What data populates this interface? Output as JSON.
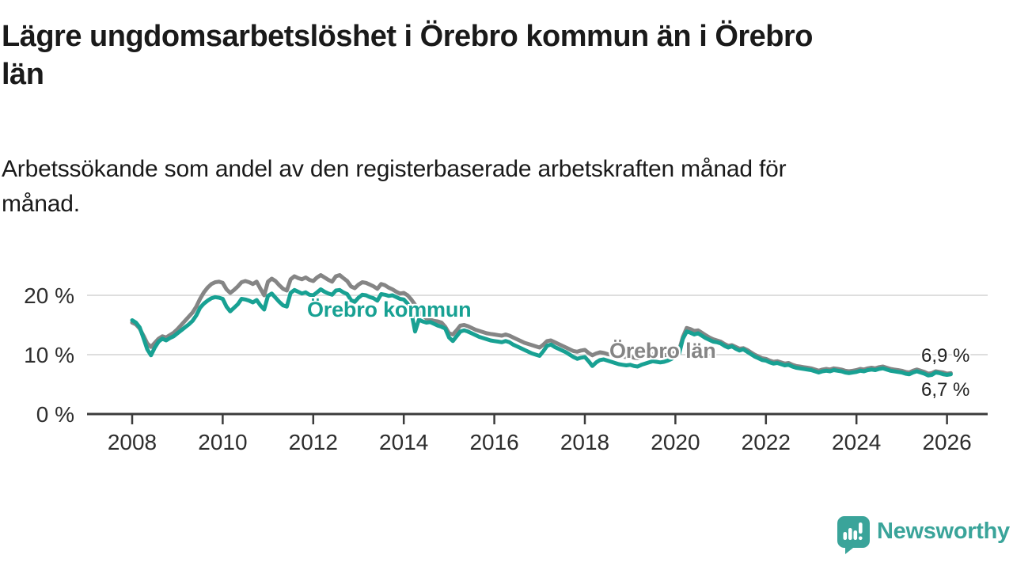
{
  "header": {
    "title": "Lägre ungdomsarbetslöshet i Örebro kommun än i Örebro\nlän",
    "subtitle": "Arbetssökande som andel av den registerbaserade arbetskraften månad för\nmånad."
  },
  "chart_data": {
    "type": "line",
    "unit": "%",
    "frequency": "monthly",
    "x_start_year": 2008,
    "points_per_year": 12,
    "x_ticks": [
      2008,
      2010,
      2012,
      2014,
      2016,
      2018,
      2020,
      2022,
      2024,
      2026
    ],
    "y_ticks": [
      {
        "value": 0,
        "label": "0 %"
      },
      {
        "value": 10,
        "label": "10 %"
      },
      {
        "value": 20,
        "label": "20 %"
      }
    ],
    "ylim": [
      0,
      25
    ],
    "grid": true,
    "colors": {
      "grid": "#dedede",
      "axis": "#3b3b3b",
      "tick_label": "#2e2e2e"
    },
    "series": [
      {
        "name": "Örebro län",
        "color": "#858585",
        "end_label": "6,9 %",
        "values": [
          15.4,
          15.1,
          14.4,
          13.2,
          11.9,
          11.3,
          12.0,
          12.7,
          13.1,
          12.9,
          13.3,
          13.7,
          14.3,
          15.0,
          15.7,
          16.4,
          17.1,
          18.1,
          19.4,
          20.5,
          21.3,
          21.9,
          22.2,
          22.3,
          22.1,
          21.0,
          20.4,
          20.9,
          21.5,
          22.2,
          22.4,
          22.2,
          21.9,
          22.3,
          21.1,
          20.0,
          22.3,
          22.8,
          22.4,
          21.7,
          21.1,
          20.8,
          22.7,
          23.2,
          22.9,
          22.7,
          23.0,
          22.6,
          22.4,
          23.0,
          23.4,
          23.0,
          22.6,
          22.3,
          23.2,
          23.4,
          22.9,
          22.4,
          21.5,
          21.2,
          21.8,
          22.2,
          22.1,
          21.8,
          21.5,
          21.1,
          21.9,
          21.7,
          21.3,
          21.0,
          20.6,
          20.3,
          20.4,
          20.0,
          19.3,
          18.4,
          17.5,
          16.7,
          16.1,
          15.9,
          15.7,
          15.6,
          15.4,
          14.7,
          13.6,
          13.4,
          14.1,
          14.9,
          15.0,
          14.8,
          14.5,
          14.2,
          14.0,
          13.8,
          13.6,
          13.5,
          13.4,
          13.3,
          13.2,
          13.4,
          13.2,
          12.9,
          12.6,
          12.3,
          12.0,
          11.8,
          11.6,
          11.4,
          11.2,
          11.7,
          12.3,
          12.4,
          12.1,
          11.8,
          11.5,
          11.2,
          10.9,
          10.6,
          10.5,
          10.7,
          10.8,
          10.3,
          9.9,
          10.2,
          10.4,
          10.3,
          10.1,
          10.0,
          9.9,
          9.8,
          9.7,
          9.6,
          9.7,
          9.5,
          9.4,
          9.6,
          9.8,
          9.9,
          10.0,
          9.9,
          9.8,
          9.9,
          10.0,
          10.2,
          10.4,
          10.8,
          13.0,
          14.5,
          14.3,
          14.0,
          14.1,
          13.7,
          13.3,
          12.9,
          12.6,
          12.4,
          12.2,
          11.8,
          11.5,
          11.6,
          11.3,
          11.0,
          11.1,
          10.8,
          10.4,
          10.0,
          9.7,
          9.4,
          9.3,
          9.0,
          8.8,
          8.9,
          8.7,
          8.5,
          8.6,
          8.3,
          8.1,
          8.0,
          7.9,
          7.8,
          7.7,
          7.5,
          7.3,
          7.5,
          7.6,
          7.5,
          7.7,
          7.6,
          7.5,
          7.3,
          7.2,
          7.3,
          7.4,
          7.6,
          7.5,
          7.7,
          7.8,
          7.7,
          7.9,
          8.0,
          7.8,
          7.6,
          7.5,
          7.4,
          7.3,
          7.1,
          7.0,
          7.3,
          7.5,
          7.3,
          7.1,
          6.8,
          6.9,
          7.2,
          7.1,
          7.0,
          6.8,
          6.9
        ]
      },
      {
        "name": "Örebro kommun",
        "color": "#18a193",
        "end_label": "6,7 %",
        "values": [
          15.8,
          15.4,
          14.6,
          12.8,
          10.9,
          9.9,
          11.2,
          12.2,
          12.7,
          12.4,
          12.8,
          13.1,
          13.6,
          14.1,
          14.6,
          15.1,
          15.7,
          16.6,
          17.9,
          18.6,
          19.1,
          19.5,
          19.7,
          19.6,
          19.4,
          18.1,
          17.3,
          17.9,
          18.5,
          19.4,
          19.3,
          19.1,
          18.8,
          19.2,
          18.3,
          17.6,
          19.9,
          20.3,
          19.6,
          18.9,
          18.3,
          18.1,
          20.4,
          20.9,
          20.6,
          20.3,
          20.5,
          20.1,
          20.0,
          20.5,
          21.0,
          20.6,
          20.3,
          20.1,
          20.8,
          20.9,
          20.5,
          20.2,
          19.2,
          18.9,
          19.6,
          20.1,
          20.0,
          19.7,
          19.5,
          19.1,
          20.2,
          20.1,
          19.9,
          20.0,
          19.7,
          19.4,
          19.3,
          18.6,
          17.2,
          13.9,
          15.9,
          15.6,
          15.4,
          15.5,
          15.2,
          14.9,
          14.7,
          14.4,
          12.9,
          12.3,
          13.1,
          13.9,
          14.1,
          13.9,
          13.6,
          13.3,
          13.0,
          12.8,
          12.6,
          12.4,
          12.3,
          12.2,
          12.1,
          12.3,
          12.1,
          11.7,
          11.4,
          11.1,
          10.8,
          10.5,
          10.2,
          10.0,
          9.8,
          10.6,
          11.5,
          11.7,
          11.3,
          11.0,
          10.7,
          10.4,
          10.0,
          9.6,
          9.3,
          9.5,
          9.6,
          8.9,
          8.1,
          8.7,
          9.1,
          9.2,
          9.0,
          8.8,
          8.6,
          8.4,
          8.3,
          8.2,
          8.3,
          8.1,
          8.0,
          8.3,
          8.5,
          8.7,
          8.9,
          8.8,
          8.7,
          8.8,
          9.0,
          9.3,
          9.7,
          10.2,
          12.7,
          13.9,
          13.7,
          13.4,
          13.6,
          13.2,
          12.8,
          12.5,
          12.2,
          12.1,
          11.9,
          11.5,
          11.2,
          11.4,
          11.0,
          10.7,
          10.9,
          10.5,
          10.1,
          9.7,
          9.4,
          9.1,
          9.0,
          8.7,
          8.5,
          8.6,
          8.4,
          8.2,
          8.3,
          8.0,
          7.8,
          7.7,
          7.6,
          7.5,
          7.4,
          7.2,
          7.0,
          7.2,
          7.3,
          7.2,
          7.4,
          7.3,
          7.2,
          7.0,
          6.9,
          7.0,
          7.1,
          7.3,
          7.2,
          7.4,
          7.5,
          7.4,
          7.6,
          7.7,
          7.5,
          7.3,
          7.2,
          7.1,
          7.0,
          6.8,
          6.7,
          7.0,
          7.2,
          7.0,
          6.8,
          6.5,
          6.6,
          7.0,
          6.9,
          6.7,
          6.6,
          6.7
        ]
      }
    ]
  },
  "footer": {
    "brand": "Newsworthy",
    "brand_color": "#3aa49a",
    "logo_icon": "speech-bubble-bar-chart-icon"
  }
}
